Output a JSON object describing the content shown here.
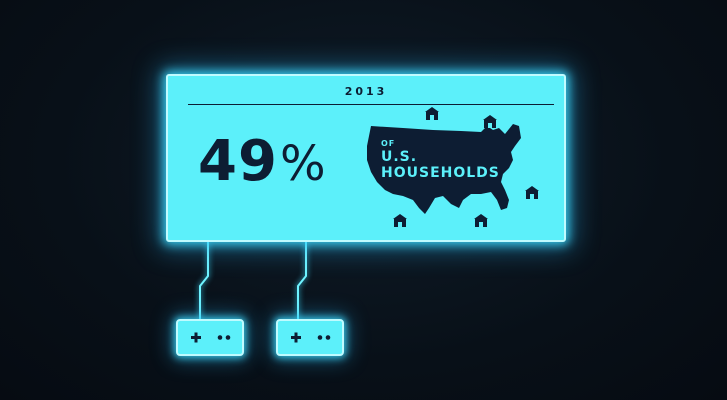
{
  "stat_card": {
    "year": "2013",
    "percent_value": "49",
    "percent_symbol": "%",
    "label_of": "OF",
    "label_us": "U.S.",
    "label_households": "HOUSEHOLDS",
    "map_icon": "us-map-silhouette",
    "house_icon": "house-icon"
  },
  "controllers": [
    {
      "icon": "game-controller-icon"
    },
    {
      "icon": "game-controller-icon"
    }
  ],
  "colors": {
    "background": "#0a1018",
    "panel_fill": "#5cf0fa",
    "panel_border": "#bffbff",
    "glow": "#3cdcff",
    "ink": "#0d1d33"
  }
}
